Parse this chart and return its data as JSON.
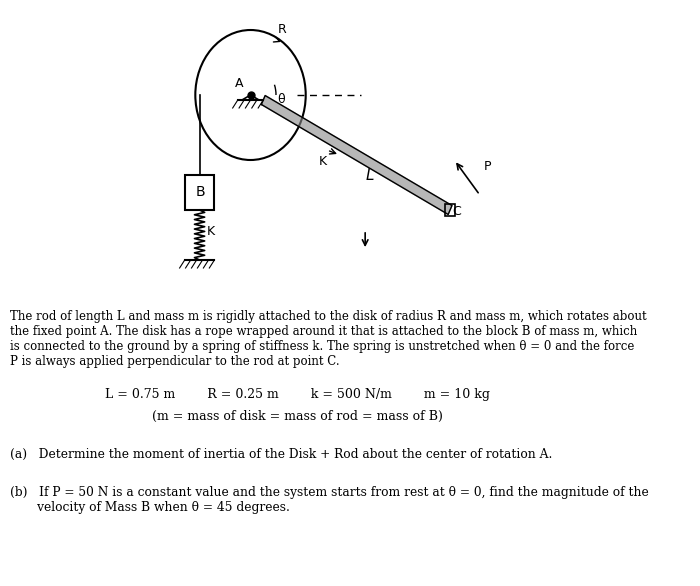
{
  "title": "",
  "background_color": "#ffffff",
  "fig_width": 7.0,
  "fig_height": 5.86,
  "paragraph_text": "The rod of length L and mass m is rigidly attached to the disk of radius R and mass m, which rotates about\nthe fixed point A. The disk has a rope wrapped around it that is attached to the block B of mass m, which\nis connected to the ground by a spring of stiffness k. The spring is unstretched when θ = 0 and the force\nP is always applied perpendicular to the rod at point C.",
  "params_text": "L = 0.75 m        R = 0.25 m        k = 500 N/m        m = 10 kg",
  "note_text": "(m = mass of disk = mass of rod = mass of B)",
  "part_a": "(a)   Determine the moment of inertia of the Disk + Rod about the center of rotation A.",
  "part_b": "(b)   If P = 50 N is a constant value and the system starts from rest at θ = 0, find the magnitude of the\n       velocity of Mass B when θ = 45 degrees."
}
